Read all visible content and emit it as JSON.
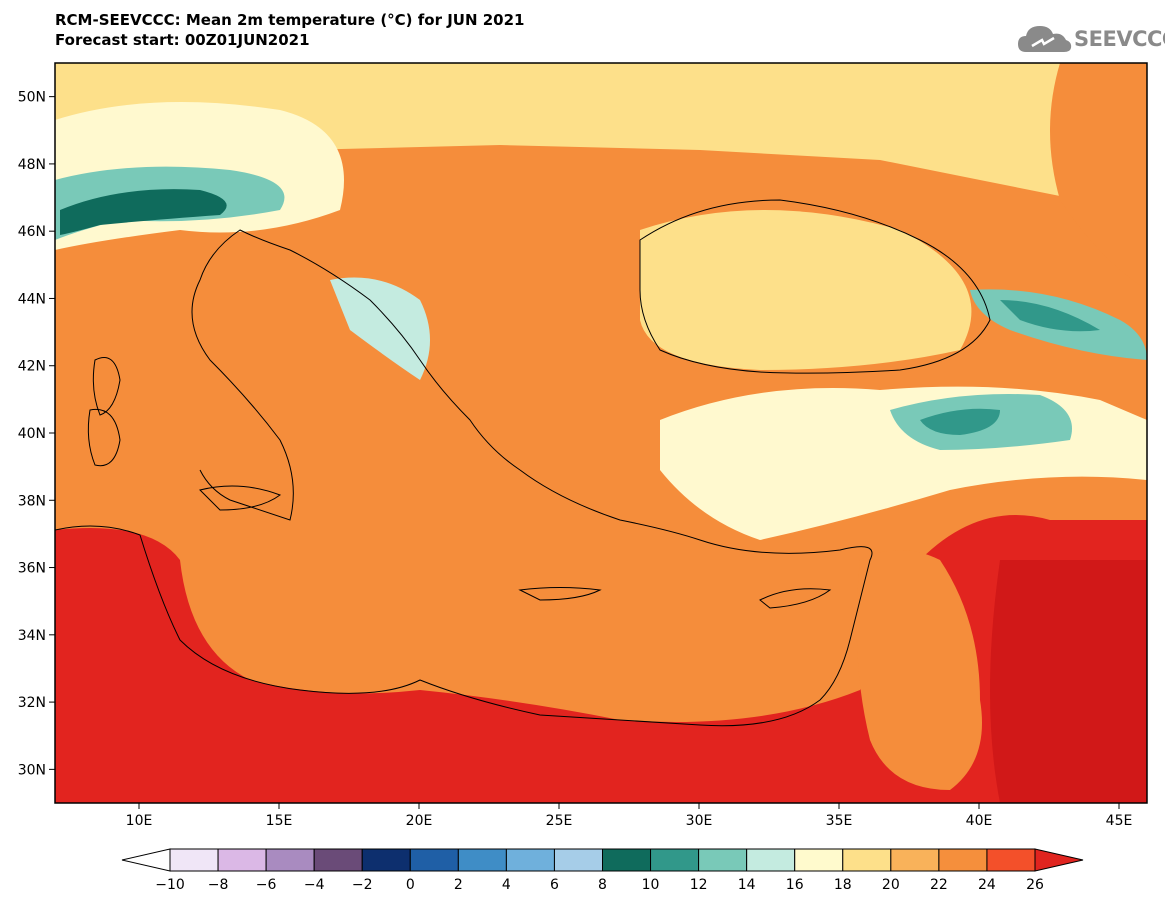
{
  "header": {
    "title_line1": "RCM-SEEVCCC: Mean 2m temperature (°C) for JUN 2021",
    "title_line2": "Forecast start: 00Z01JUN2021"
  },
  "logo": {
    "text": "SEEVCCC",
    "icon": "cloud-icon"
  },
  "map": {
    "lon_range": [
      7,
      46
    ],
    "lat_range": [
      29,
      51
    ],
    "x_ticks": [
      "10E",
      "15E",
      "20E",
      "25E",
      "30E",
      "35E",
      "40E",
      "45E"
    ],
    "y_ticks": [
      "50N",
      "48N",
      "46N",
      "44N",
      "42N",
      "40N",
      "38N",
      "36N",
      "34N",
      "32N",
      "30N"
    ]
  },
  "colorbar": {
    "labels": [
      "-10",
      "-8",
      "-6",
      "-4",
      "-2",
      "0",
      "2",
      "4",
      "6",
      "8",
      "10",
      "12",
      "14",
      "16",
      "18",
      "20",
      "22",
      "24",
      "26"
    ],
    "colors": [
      "#ffffff",
      "#f0e6f7",
      "#dbb8e6",
      "#a98bc0",
      "#6a4b78",
      "#0d2f6e",
      "#1f5fa6",
      "#3f8dc6",
      "#6fb0dc",
      "#a6cde8",
      "#0f6b5c",
      "#31988a",
      "#79c9b8",
      "#c4ebe0",
      "#fffacd",
      "#fde08a",
      "#f9b25a",
      "#f58f3c",
      "#f3502a",
      "#e0241f"
    ]
  },
  "palette": {
    "hot": "#e2241f",
    "warm": "#f58d3b",
    "mild": "#f9b25a",
    "pale": "#fde08a",
    "cream": "#fff9cf",
    "ice": "#c4ebe0",
    "teal": "#79c9b8",
    "deep": "#31988a",
    "darkest": "#0f6b5c",
    "deep_red": "#d11818"
  }
}
